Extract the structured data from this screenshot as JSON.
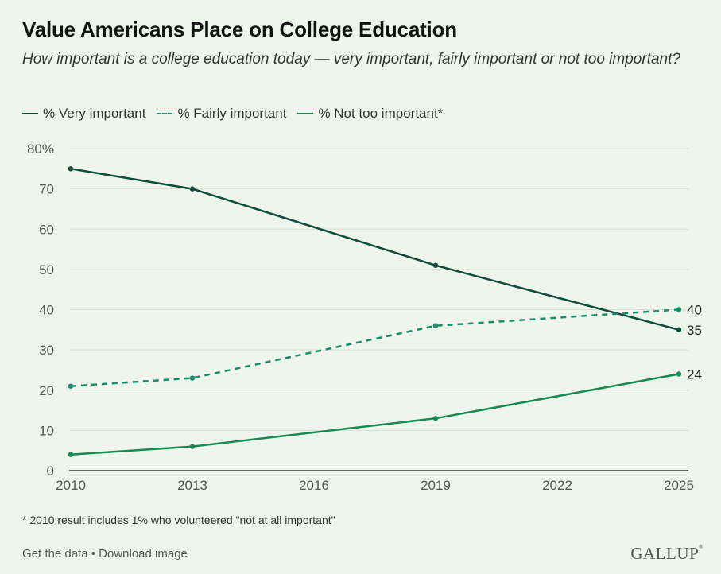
{
  "title": "Value Americans Place on College Education",
  "subtitle": "How important is a college education today — very important, fairly important or not too important?",
  "legend": [
    {
      "label": "% Very important",
      "color": "#0f4a3c",
      "dash": "solid"
    },
    {
      "label": "% Fairly important",
      "color": "#1a8a6c",
      "dash": "dashed"
    },
    {
      "label": "% Not too important*",
      "color": "#168a52",
      "dash": "solid"
    }
  ],
  "footnote": "* 2010 result includes 1% who volunteered \"not at all important\"",
  "footer": {
    "get_data": "Get the data",
    "separator": " • ",
    "download": "Download image"
  },
  "brand": "GALLUP",
  "chart_data": {
    "type": "line",
    "x": [
      2010,
      2013,
      2019,
      2025
    ],
    "xticks": [
      "2010",
      "2013",
      "2016",
      "2019",
      "2022",
      "2025"
    ],
    "xlim": [
      2010,
      2025
    ],
    "ylim": [
      0,
      80
    ],
    "yticks": [
      "0",
      "10",
      "20",
      "30",
      "40",
      "50",
      "60",
      "70",
      "80%"
    ],
    "grid": true,
    "legend_position": "top-left",
    "series": [
      {
        "name": "% Very important",
        "values": [
          75,
          70,
          51,
          35
        ],
        "color": "#0f4a3c",
        "dashed": false,
        "end_label": "35"
      },
      {
        "name": "% Fairly important",
        "values": [
          21,
          23,
          36,
          40
        ],
        "color": "#1a8a6c",
        "dashed": true,
        "end_label": "40"
      },
      {
        "name": "% Not too important*",
        "values": [
          4,
          6,
          13,
          24
        ],
        "color": "#168a52",
        "dashed": false,
        "end_label": "24"
      }
    ]
  }
}
